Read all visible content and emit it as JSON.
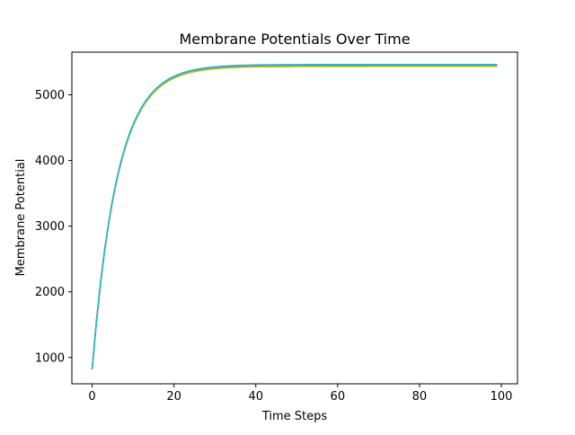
{
  "chart_data": {
    "type": "line",
    "title": "Membrane Potentials Over Time",
    "xlabel": "Time Steps",
    "ylabel": "Membrane Potential",
    "xlim": [
      -4.95,
      103.95
    ],
    "ylim": [
      600,
      5650
    ],
    "xticks": [
      0,
      20,
      40,
      60,
      80,
      100
    ],
    "yticks": [
      1000,
      2000,
      3000,
      4000,
      5000
    ],
    "grid": false,
    "legend": "none",
    "model": {
      "steps": 100,
      "initial": 820,
      "decay_factor": 0.85
    },
    "series": [
      {
        "color": "#1f77b4",
        "asymptote": 5455
      },
      {
        "color": "#ff7f0e",
        "asymptote": 5440
      },
      {
        "color": "#2ca02c",
        "asymptote": 5435
      },
      {
        "color": "#d62728",
        "asymptote": 5448
      },
      {
        "color": "#9467bd",
        "asymptote": 5452
      },
      {
        "color": "#8c564b",
        "asymptote": 5442
      },
      {
        "color": "#e377c2",
        "asymptote": 5458
      },
      {
        "color": "#7f7f7f",
        "asymptote": 5438
      },
      {
        "color": "#bcbd22",
        "asymptote": 5432
      },
      {
        "color": "#17becf",
        "asymptote": 5462
      }
    ]
  }
}
